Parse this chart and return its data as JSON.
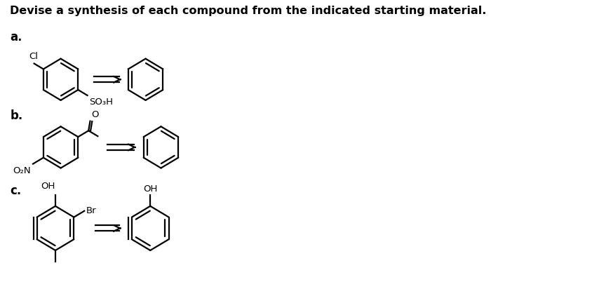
{
  "title": "Devise a synthesis of each compound from the indicated starting material.",
  "title_fontsize": 11.5,
  "title_fontweight": "bold",
  "bg_color": "#ffffff",
  "text_color": "#000000",
  "label_a": "a.",
  "label_b": "b.",
  "label_c": "c.",
  "label_fontsize": 12,
  "label_fontweight": "bold",
  "chem_fontsize": 9.5,
  "fig_width": 8.44,
  "fig_height": 4.12,
  "ring_lw": 1.6
}
